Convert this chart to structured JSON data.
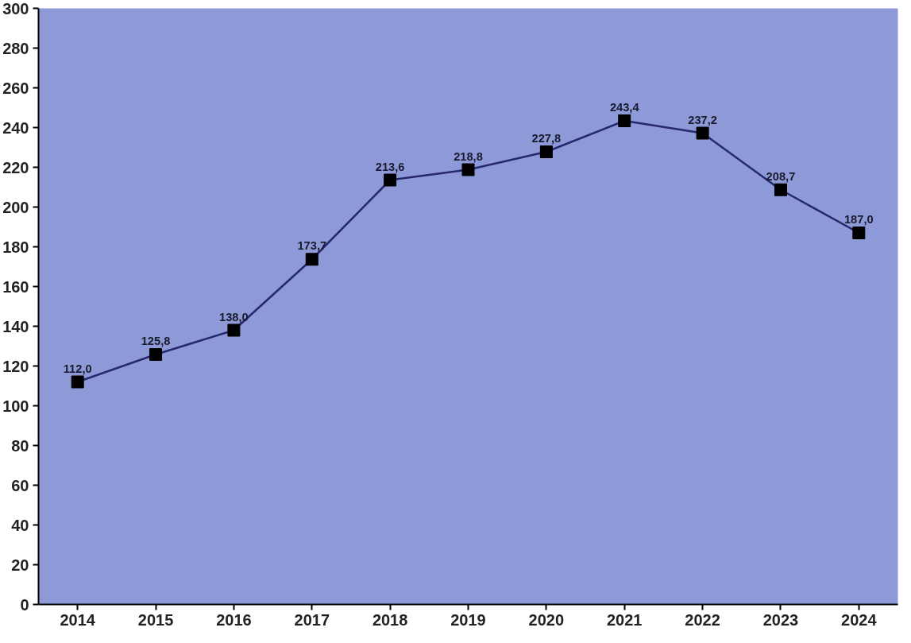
{
  "chart_data": {
    "type": "line",
    "categories": [
      "2014",
      "2015",
      "2016",
      "2017",
      "2018",
      "2019",
      "2020",
      "2021",
      "2022",
      "2023",
      "2024"
    ],
    "series": [
      {
        "color": "#27276e",
        "values": [
          112.0,
          125.8,
          138.0,
          173.7,
          213.6,
          218.8,
          227.8,
          243.4,
          237.2,
          208.7,
          187.0
        ],
        "value_labels": [
          "112,0",
          "125,8",
          "138,0",
          "173,7",
          "213,6",
          "218,8",
          "227,8",
          "243,4",
          "237,2",
          "208,7",
          "187,0"
        ]
      }
    ],
    "ylim": [
      0,
      300
    ],
    "yticks": [
      0,
      20,
      40,
      60,
      80,
      100,
      120,
      140,
      160,
      180,
      200,
      220,
      240,
      260,
      280,
      300
    ],
    "marker": "square",
    "grid": false
  }
}
